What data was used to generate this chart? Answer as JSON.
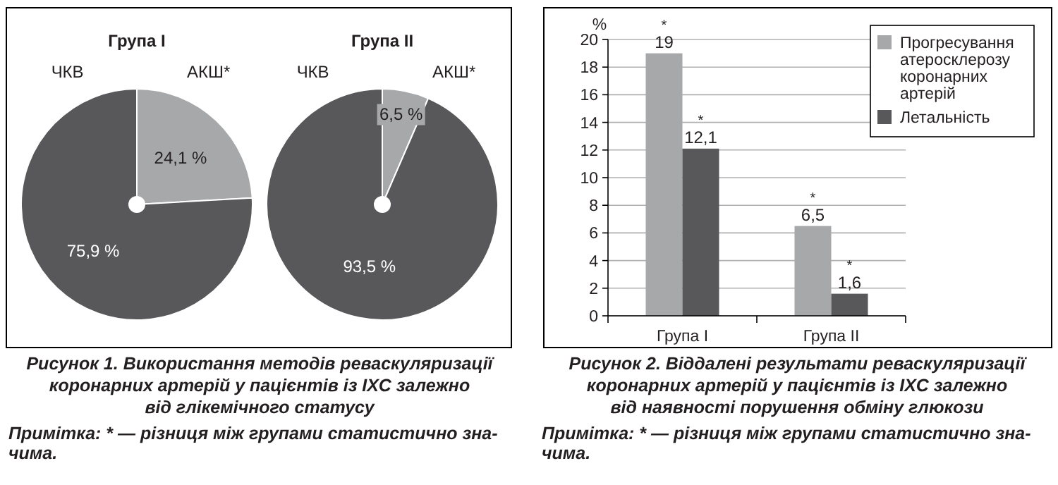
{
  "chart_data": [
    {
      "type": "pie",
      "title": "Група I",
      "categories": [
        "ЧКВ",
        "АКШ*"
      ],
      "values": [
        75.9,
        24.1
      ],
      "colors": [
        "#58585a",
        "#a7a8aa"
      ],
      "value_labels": [
        "75,9 %",
        "24,1 %"
      ],
      "annotations": [
        "Рисунок 1.  Використання методів реваскуляризації\nкоронарних артерій у пацієнтів із ІХС залежно\nвід глікемічного статусу",
        "Примітка: * — різниця між групами статистично зна-\nчима."
      ]
    },
    {
      "type": "pie",
      "title": "Група II",
      "categories": [
        "ЧКВ",
        "АКШ*"
      ],
      "values": [
        93.5,
        6.5
      ],
      "colors": [
        "#58585a",
        "#a7a8aa"
      ],
      "value_labels": [
        "93,5 %",
        "6,5 %"
      ]
    },
    {
      "type": "bar",
      "categories": [
        "Група I",
        "Група II"
      ],
      "ylabel": "%",
      "ylim": [
        0,
        20
      ],
      "yticks": [
        0,
        2,
        4,
        6,
        8,
        10,
        12,
        14,
        16,
        18,
        20
      ],
      "grid": "y",
      "legend": "top right",
      "series": [
        {
          "name": "Прогресування атеросклерозу коронарних артерій",
          "color": "#a7a8aa",
          "values": [
            19,
            6.5
          ],
          "value_labels": [
            "19",
            "6,5"
          ]
        },
        {
          "name": "Летальність",
          "color": "#58585a",
          "values": [
            12.1,
            1.6
          ],
          "value_labels": [
            "12,1",
            "1,6"
          ]
        }
      ],
      "annotations": [
        {
          "text": "*",
          "x": "Група I",
          "y": 19
        },
        {
          "text": "*",
          "x": "Група I",
          "y": 12.1
        },
        {
          "text": "*",
          "x": "Група II",
          "y": 6.5
        },
        {
          "text": "*",
          "x": "Група II",
          "y": 1.6
        },
        "Рисунок 2.  Віддалені результати реваскуляризації\nкоронарних артерій у пацієнтів із ІХС залежно\nвід наявності порушення обміну глюкози",
        "Примітка: * — різниця між групами статистично зна-\nчима."
      ]
    }
  ]
}
